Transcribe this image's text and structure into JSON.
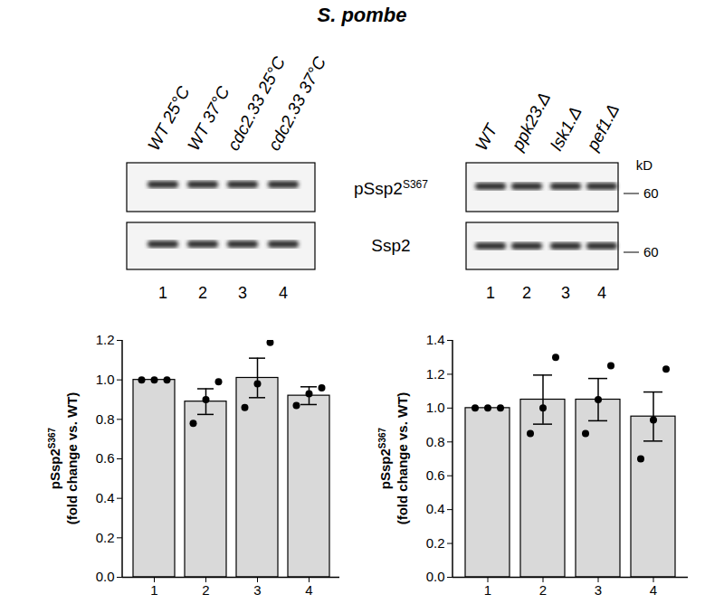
{
  "figure": {
    "title": "S. pombe",
    "blots": [
      {
        "lanes": [
          "WT 25°C",
          "WT 37°C",
          "cdc2.33 25°C",
          "cdc2.33 37°C"
        ],
        "lane_numbers": [
          "1",
          "2",
          "3",
          "4"
        ],
        "rows": [
          {
            "text": "pSsp2",
            "superscript": "S367"
          },
          {
            "text": "Ssp2"
          }
        ]
      },
      {
        "lanes": [
          "WT",
          "ppk23.Δ",
          "lsk1.Δ",
          "pef1.Δ"
        ],
        "lane_numbers": [
          "1",
          "2",
          "3",
          "4"
        ],
        "rows": [
          {
            "text": "pSsp2",
            "superscript": "S367"
          },
          {
            "text": "Ssp2"
          }
        ],
        "marker_unit": "kD",
        "marker_labels": [
          "60",
          "60"
        ]
      }
    ]
  },
  "chart_data": [
    {
      "type": "bar",
      "categories": [
        "1",
        "2",
        "3",
        "4"
      ],
      "values": [
        1.0,
        0.89,
        1.01,
        0.92
      ],
      "errors": [
        0,
        0.065,
        0.1,
        0.045
      ],
      "points": [
        [
          1.0,
          1.0,
          1.0
        ],
        [
          0.78,
          0.9,
          0.99
        ],
        [
          0.86,
          0.98,
          1.19
        ],
        [
          0.87,
          0.93,
          0.96
        ]
      ],
      "color": "#d9d9d9",
      "ylabel": {
        "text": "pSsp2",
        "superscript": "S367",
        "line2": "(fold change vs. WT)"
      },
      "ylim": [
        0,
        1.2
      ],
      "yticks": [
        {
          "value": 0,
          "label": "0.0"
        },
        0.2,
        0.4,
        0.6,
        0.8,
        {
          "value": 1,
          "label": "1.0"
        },
        1.2
      ]
    },
    {
      "type": "bar",
      "categories": [
        "1",
        "2",
        "3",
        "4"
      ],
      "values": [
        1.0,
        1.05,
        1.05,
        0.95
      ],
      "errors": [
        0,
        0.145,
        0.125,
        0.145
      ],
      "points": [
        [
          1.0,
          1.0,
          1.0
        ],
        [
          0.85,
          1.0,
          1.3
        ],
        [
          0.85,
          1.05,
          1.25
        ],
        [
          0.7,
          0.93,
          1.23
        ]
      ],
      "color": "#d9d9d9",
      "ylabel": {
        "text": "pSsp2",
        "superscript": "S367",
        "line2": "(fold change vs. WT)"
      },
      "ylim": [
        0,
        1.4
      ],
      "yticks": [
        {
          "value": 0,
          "label": "0.0"
        },
        0.2,
        0.4,
        0.6,
        0.8,
        {
          "value": 1,
          "label": "1.0"
        },
        1.2,
        1.4
      ]
    }
  ]
}
